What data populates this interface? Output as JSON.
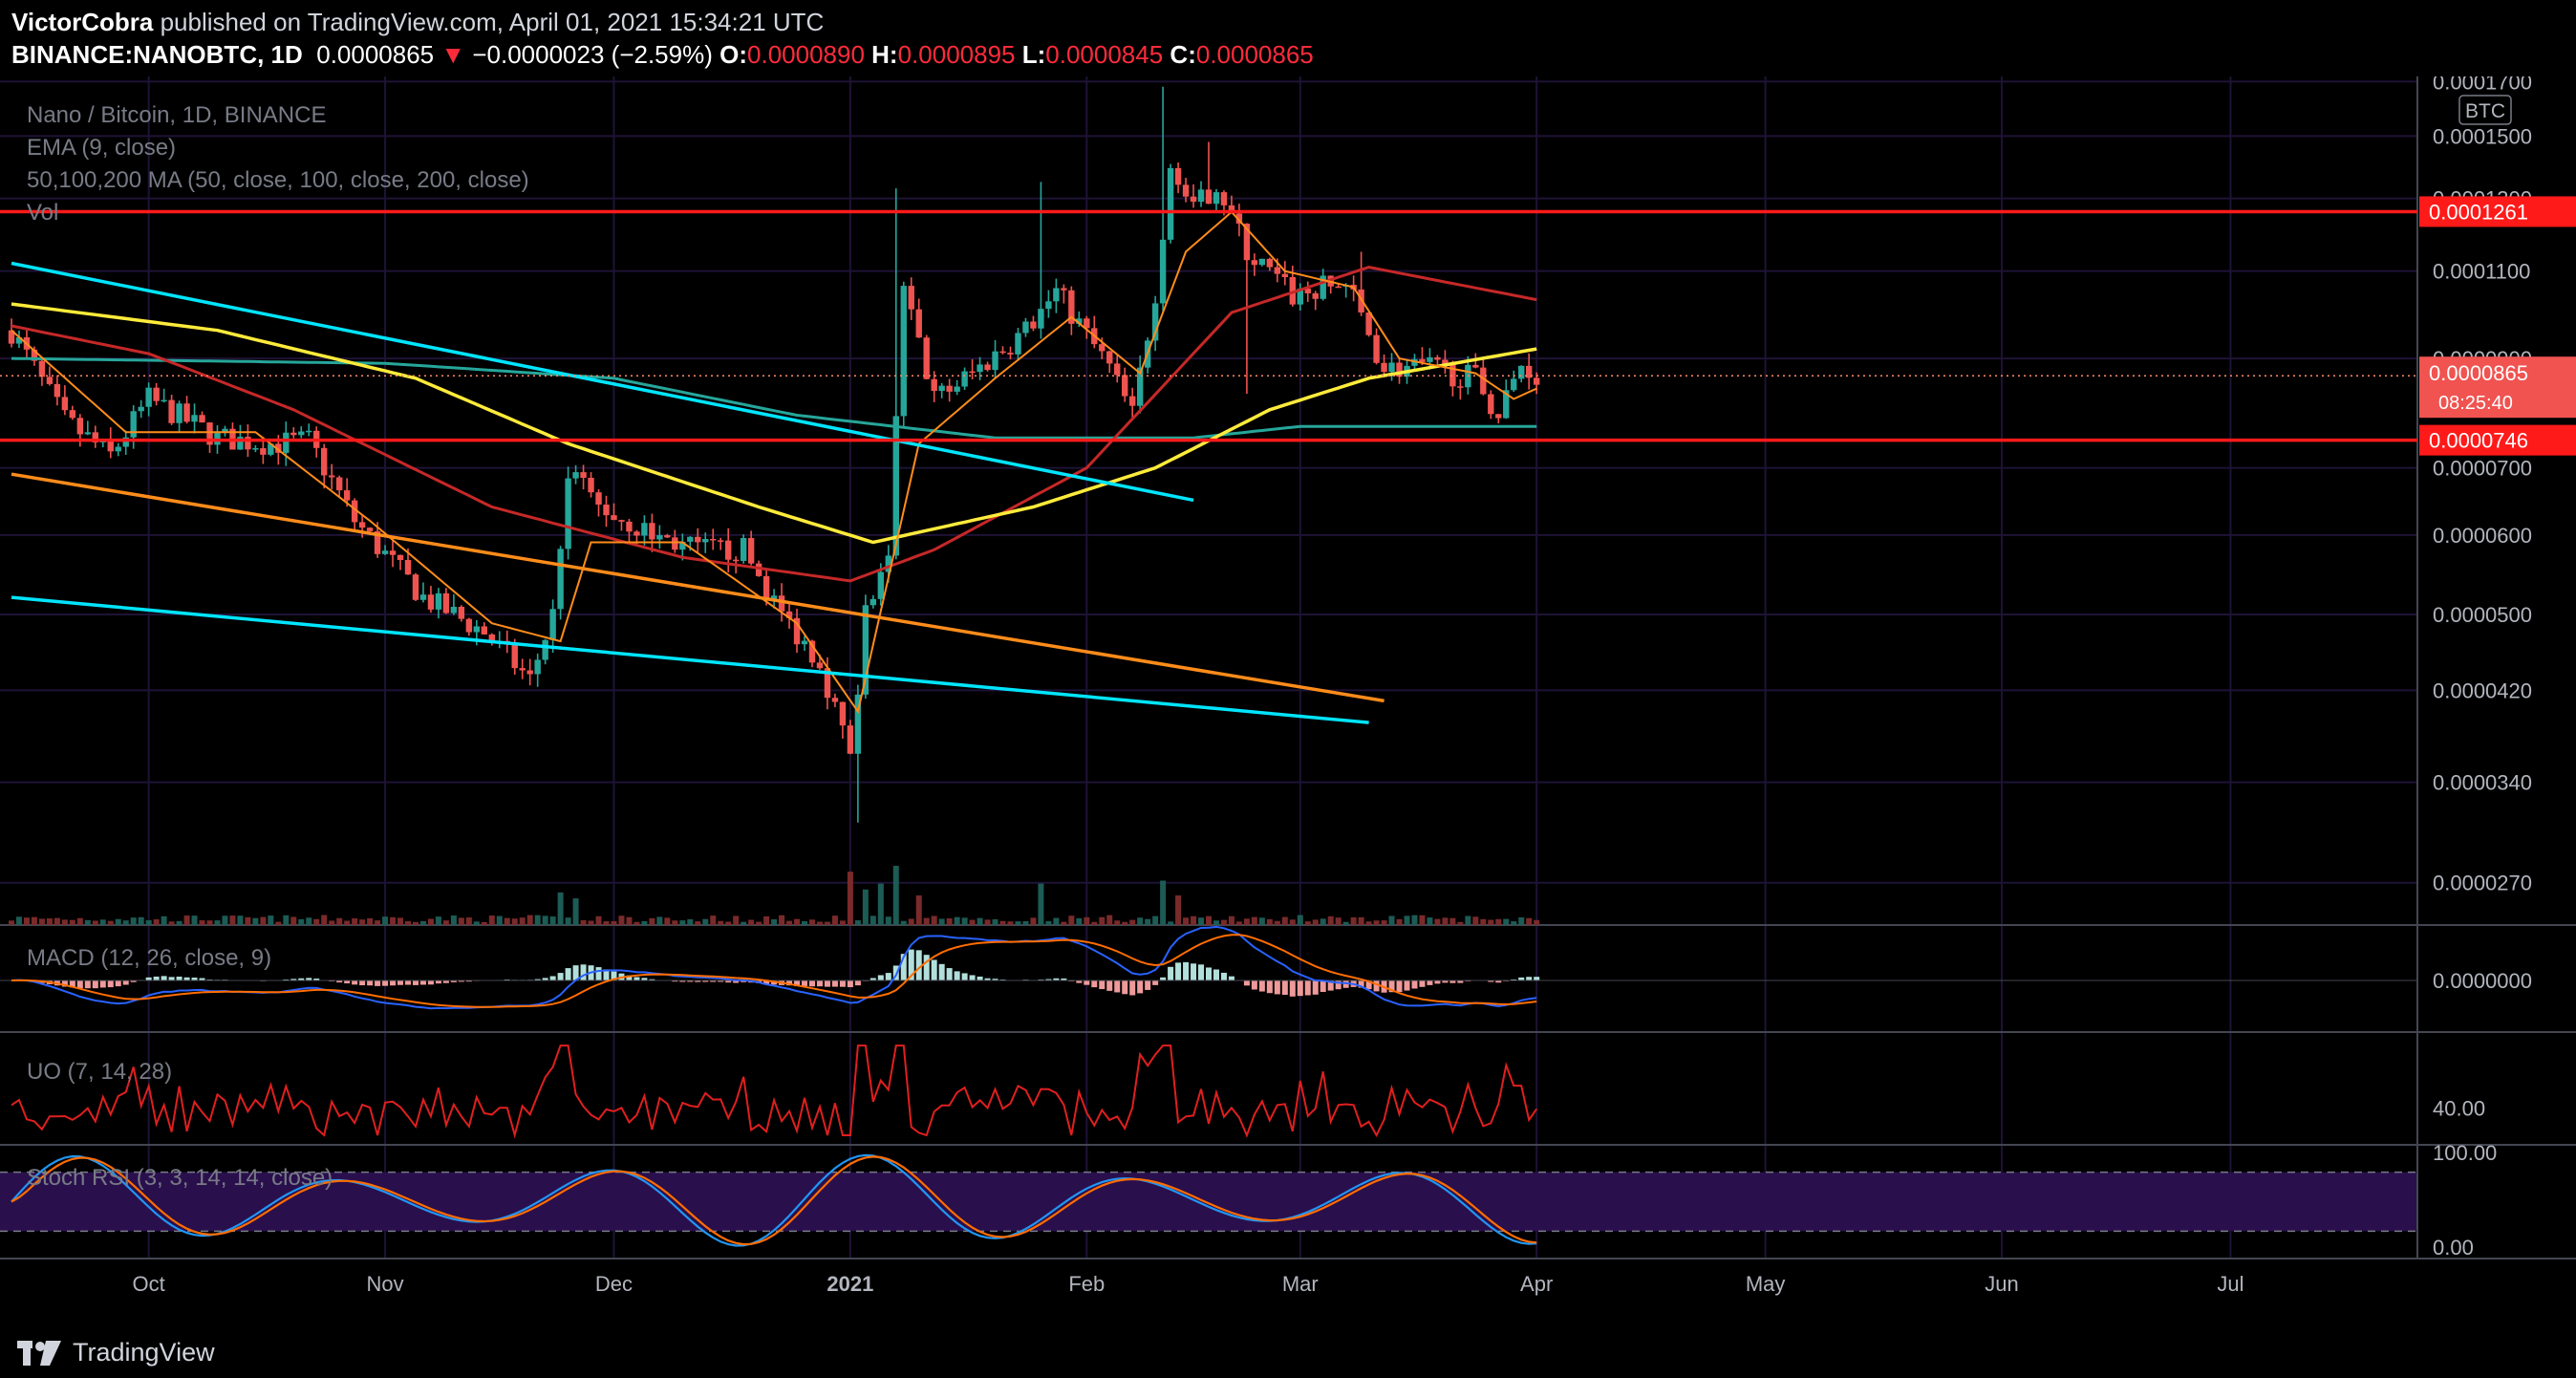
{
  "header": {
    "author": "VictorCobra",
    "published": "published on TradingView.com, April 01, 2021 15:34:21 UTC",
    "symbol": "BINANCE:NANOBTC, 1D",
    "last": "0.0000865",
    "arrow": "▼",
    "change": "−0.0000023 (−2.59%)",
    "o_label": "O:",
    "o": "0.0000890",
    "h_label": "H:",
    "h": "0.0000895",
    "l_label": "L:",
    "l": "0.0000845",
    "c_label": "C:",
    "c": "0.0000865"
  },
  "legend": {
    "title": "Nano / Bitcoin, 1D, BINANCE",
    "ema": "EMA (9, close)",
    "ma": "50,100,200 MA (50, close, 100, close, 200, close)",
    "vol": "Vol",
    "macd": "MACD (12, 26, close, 9)",
    "uo": "UO (7, 14, 28)",
    "stoch": "Stoch RSI (3, 3, 14, 14, close)"
  },
  "footer": {
    "brand": "TradingView"
  },
  "colors": {
    "up": "#26a69a",
    "down": "#ef5350",
    "ema": "#ff8c1a",
    "ma50": "#c62828",
    "ma100": "#ffeb3b",
    "ma200": "#26a69a",
    "trend": "#00e5ff",
    "hline": "#ff1a1a",
    "macd": "#2962ff",
    "signal": "#ff6d00",
    "uo": "#e01f1f",
    "stochk": "#2196f3",
    "stochd": "#ff6d00",
    "stochband": "#2a0f4d"
  },
  "chart_data": {
    "type": "candlestick",
    "title": "Nano / Bitcoin, 1D, BINANCE",
    "price_unit": "BTC",
    "y_ticks": [
      "0.0001700",
      "0.0001500",
      "0.0001300",
      "0.0001100",
      "0.0000900",
      "0.0000700",
      "0.0000600",
      "0.0000500",
      "0.0000420",
      "0.0000340",
      "0.0000270"
    ],
    "y_scale": "log",
    "y_range": [
      2.45e-05,
      0.000172
    ],
    "x_ticks": [
      "Oct",
      "Nov",
      "Dec",
      "2021",
      "Feb",
      "Mar",
      "Apr",
      "May",
      "Jun",
      "Jul"
    ],
    "x_range": [
      "2020-09-13",
      "2021-07-24"
    ],
    "last_price": 8.65e-05,
    "price_tag": "0.0000865",
    "countdown": "08:25:40",
    "horizontal_levels": [
      {
        "value": 0.0001261,
        "label": "0.0001261"
      },
      {
        "value": 7.46e-05,
        "label": "0.0000746"
      }
    ],
    "anchors": [
      {
        "date": "2020-09-13",
        "price": 9.6e-05
      },
      {
        "date": "2020-09-20",
        "price": 7.8e-05
      },
      {
        "date": "2020-09-26",
        "price": 7.2e-05
      },
      {
        "date": "2020-10-01",
        "price": 8.2e-05
      },
      {
        "date": "2020-10-10",
        "price": 7.5e-05
      },
      {
        "date": "2020-10-17",
        "price": 7.4e-05
      },
      {
        "date": "2020-10-22",
        "price": 7.45e-05
      },
      {
        "date": "2020-10-28",
        "price": 6.2e-05
      },
      {
        "date": "2020-11-06",
        "price": 5.2e-05
      },
      {
        "date": "2020-11-14",
        "price": 4.8e-05
      },
      {
        "date": "2020-11-20",
        "price": 4.3e-05
      },
      {
        "date": "2020-11-23",
        "price": 5e-05
      },
      {
        "date": "2020-11-25",
        "price": 7e-05
      },
      {
        "date": "2020-11-29",
        "price": 6.4e-05
      },
      {
        "date": "2020-12-06",
        "price": 6e-05
      },
      {
        "date": "2020-12-12",
        "price": 5.8e-05
      },
      {
        "date": "2020-12-18",
        "price": 5.8e-05
      },
      {
        "date": "2020-12-23",
        "price": 5e-05
      },
      {
        "date": "2020-12-28",
        "price": 4.5e-05
      },
      {
        "date": "2021-01-01",
        "price": 3.6e-05
      },
      {
        "date": "2021-01-03",
        "price": 5e-05
      },
      {
        "date": "2021-01-06",
        "price": 5.6e-05
      },
      {
        "date": "2021-01-08",
        "price": 0.000105
      },
      {
        "date": "2021-01-12",
        "price": 8.2e-05
      },
      {
        "date": "2021-01-17",
        "price": 8.7e-05
      },
      {
        "date": "2021-01-24",
        "price": 9.6e-05
      },
      {
        "date": "2021-01-28",
        "price": 0.000105
      },
      {
        "date": "2021-02-04",
        "price": 8.8e-05
      },
      {
        "date": "2021-02-07",
        "price": 7.9e-05
      },
      {
        "date": "2021-02-10",
        "price": 0.000105
      },
      {
        "date": "2021-02-12",
        "price": 0.00014
      },
      {
        "date": "2021-02-15",
        "price": 0.000126
      },
      {
        "date": "2021-02-18",
        "price": 0.000135
      },
      {
        "date": "2021-02-22",
        "price": 0.000115
      },
      {
        "date": "2021-02-28",
        "price": 0.000104
      },
      {
        "date": "2021-03-07",
        "price": 0.000107
      },
      {
        "date": "2021-03-12",
        "price": 8.8e-05
      },
      {
        "date": "2021-03-18",
        "price": 8.8e-05
      },
      {
        "date": "2021-03-24",
        "price": 8.6e-05
      },
      {
        "date": "2021-03-27",
        "price": 7.9e-05
      },
      {
        "date": "2021-03-30",
        "price": 8.9e-05
      },
      {
        "date": "2021-04-01",
        "price": 8.65e-05
      }
    ],
    "spikes": [
      {
        "date": "2021-01-07",
        "high": 0.000133
      },
      {
        "date": "2021-01-26",
        "high": 0.000135
      },
      {
        "date": "2021-02-11",
        "high": 0.000168
      },
      {
        "date": "2021-02-17",
        "high": 0.000148
      },
      {
        "date": "2021-02-22",
        "low": 8.3e-05
      },
      {
        "date": "2021-03-09",
        "high": 0.000115
      },
      {
        "date": "2021-01-02",
        "low": 3.1e-05
      }
    ],
    "ema_levels": [
      {
        "date": "2020-09-13",
        "price": 9.6e-05
      },
      {
        "date": "2020-09-28",
        "price": 7.6e-05
      },
      {
        "date": "2020-10-15",
        "price": 7.6e-05
      },
      {
        "date": "2020-10-30",
        "price": 6.2e-05
      },
      {
        "date": "2020-11-15",
        "price": 4.9e-05
      },
      {
        "date": "2020-11-24",
        "price": 4.7e-05
      },
      {
        "date": "2020-11-28",
        "price": 5.9e-05
      },
      {
        "date": "2020-12-10",
        "price": 5.9e-05
      },
      {
        "date": "2020-12-25",
        "price": 4.9e-05
      },
      {
        "date": "2021-01-02",
        "price": 4e-05
      },
      {
        "date": "2021-01-10",
        "price": 7.4e-05
      },
      {
        "date": "2021-01-20",
        "price": 8.6e-05
      },
      {
        "date": "2021-01-30",
        "price": 9.9e-05
      },
      {
        "date": "2021-02-08",
        "price": 8.7e-05
      },
      {
        "date": "2021-02-14",
        "price": 0.000115
      },
      {
        "date": "2021-02-20",
        "price": 0.000126
      },
      {
        "date": "2021-02-27",
        "price": 0.00011
      },
      {
        "date": "2021-03-08",
        "price": 0.000106
      },
      {
        "date": "2021-03-14",
        "price": 9e-05
      },
      {
        "date": "2021-03-24",
        "price": 8.7e-05
      },
      {
        "date": "2021-03-29",
        "price": 8.2e-05
      },
      {
        "date": "2021-04-01",
        "price": 8.4e-05
      }
    ],
    "ma50_levels": [
      {
        "date": "2020-09-13",
        "price": 9.7e-05
      },
      {
        "date": "2020-10-01",
        "price": 9.1e-05
      },
      {
        "date": "2020-10-20",
        "price": 8e-05
      },
      {
        "date": "2020-11-15",
        "price": 6.4e-05
      },
      {
        "date": "2020-12-10",
        "price": 5.7e-05
      },
      {
        "date": "2021-01-01",
        "price": 5.4e-05
      },
      {
        "date": "2021-01-12",
        "price": 5.8e-05
      },
      {
        "date": "2021-02-01",
        "price": 7e-05
      },
      {
        "date": "2021-02-20",
        "price": 0.0001
      },
      {
        "date": "2021-03-10",
        "price": 0.000111
      },
      {
        "date": "2021-04-01",
        "price": 0.000103
      }
    ],
    "ma100_levels": [
      {
        "date": "2020-09-13",
        "price": 0.000102
      },
      {
        "date": "2020-10-10",
        "price": 9.6e-05
      },
      {
        "date": "2020-11-05",
        "price": 8.6e-05
      },
      {
        "date": "2020-11-25",
        "price": 7.4e-05
      },
      {
        "date": "2020-12-20",
        "price": 6.4e-05
      },
      {
        "date": "2021-01-04",
        "price": 5.9e-05
      },
      {
        "date": "2021-01-25",
        "price": 6.4e-05
      },
      {
        "date": "2021-02-10",
        "price": 7e-05
      },
      {
        "date": "2021-02-25",
        "price": 8e-05
      },
      {
        "date": "2021-03-10",
        "price": 8.6e-05
      },
      {
        "date": "2021-04-01",
        "price": 9.2e-05
      }
    ],
    "ma200_levels": [
      {
        "date": "2020-09-13",
        "price": 9e-05
      },
      {
        "date": "2020-11-01",
        "price": 8.9e-05
      },
      {
        "date": "2020-12-01",
        "price": 8.6e-05
      },
      {
        "date": "2020-12-25",
        "price": 7.9e-05
      },
      {
        "date": "2021-01-20",
        "price": 7.5e-05
      },
      {
        "date": "2021-02-15",
        "price": 7.5e-05
      },
      {
        "date": "2021-03-01",
        "price": 7.7e-05
      },
      {
        "date": "2021-04-01",
        "price": 7.7e-05
      }
    ],
    "trend_lines": [
      {
        "color": "trend",
        "from": {
          "date": "2020-09-13",
          "price": 0.000112
        },
        "to": {
          "date": "2021-02-15",
          "price": 6.5e-05
        }
      },
      {
        "color": "trend",
        "from": {
          "date": "2020-09-13",
          "price": 5.2e-05
        },
        "to": {
          "date": "2021-03-10",
          "price": 3.9e-05
        }
      },
      {
        "color": "ema",
        "from": {
          "date": "2020-09-13",
          "price": 6.9e-05
        },
        "to": {
          "date": "2021-03-12",
          "price": 4.1e-05
        }
      }
    ],
    "volume_spikes": [
      {
        "date": "2020-11-24",
        "value": 0.55
      },
      {
        "date": "2020-11-26",
        "value": 0.45
      },
      {
        "date": "2021-01-01",
        "value": 0.9
      },
      {
        "date": "2021-01-03",
        "value": 0.6
      },
      {
        "date": "2021-01-05",
        "value": 0.7
      },
      {
        "date": "2021-01-07",
        "value": 1.0
      },
      {
        "date": "2021-01-10",
        "value": 0.5
      },
      {
        "date": "2021-01-26",
        "value": 0.7
      },
      {
        "date": "2021-02-11",
        "value": 0.75
      },
      {
        "date": "2021-02-13",
        "value": 0.5
      }
    ],
    "macd": {
      "zero_label": "0.0000000",
      "range": [
        -1,
        1
      ]
    },
    "uo": {
      "tick": "40.00",
      "range": [
        25,
        75
      ]
    },
    "stoch_rsi": {
      "ticks": [
        "100.00",
        "0.00"
      ],
      "band": [
        20,
        80
      ],
      "range": [
        0,
        100
      ]
    }
  }
}
